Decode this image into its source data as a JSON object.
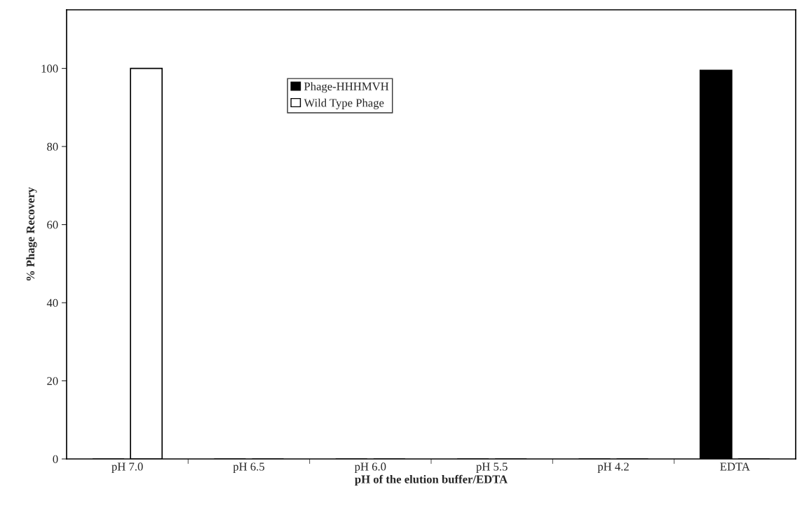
{
  "chart_data": {
    "type": "bar",
    "xlabel": "pH of the elution buffer/EDTA",
    "ylabel": "% Phage Recovery",
    "categories": [
      "pH 7.0",
      "pH 6.5",
      "pH 6.0",
      "pH 5.5",
      "pH 4.2",
      "EDTA"
    ],
    "series": [
      {
        "name": "Phage-HHHMVH",
        "color": "#000000",
        "values": [
          0,
          0,
          0,
          0,
          0,
          99.5
        ]
      },
      {
        "name": "Wild Type Phage",
        "color": "#ffffff",
        "values": [
          100,
          0,
          0,
          0,
          0,
          0
        ]
      }
    ],
    "ylim": [
      0,
      115
    ],
    "yticks": [
      0,
      20,
      40,
      60,
      80,
      100
    ],
    "grid": false,
    "legend": "top"
  }
}
